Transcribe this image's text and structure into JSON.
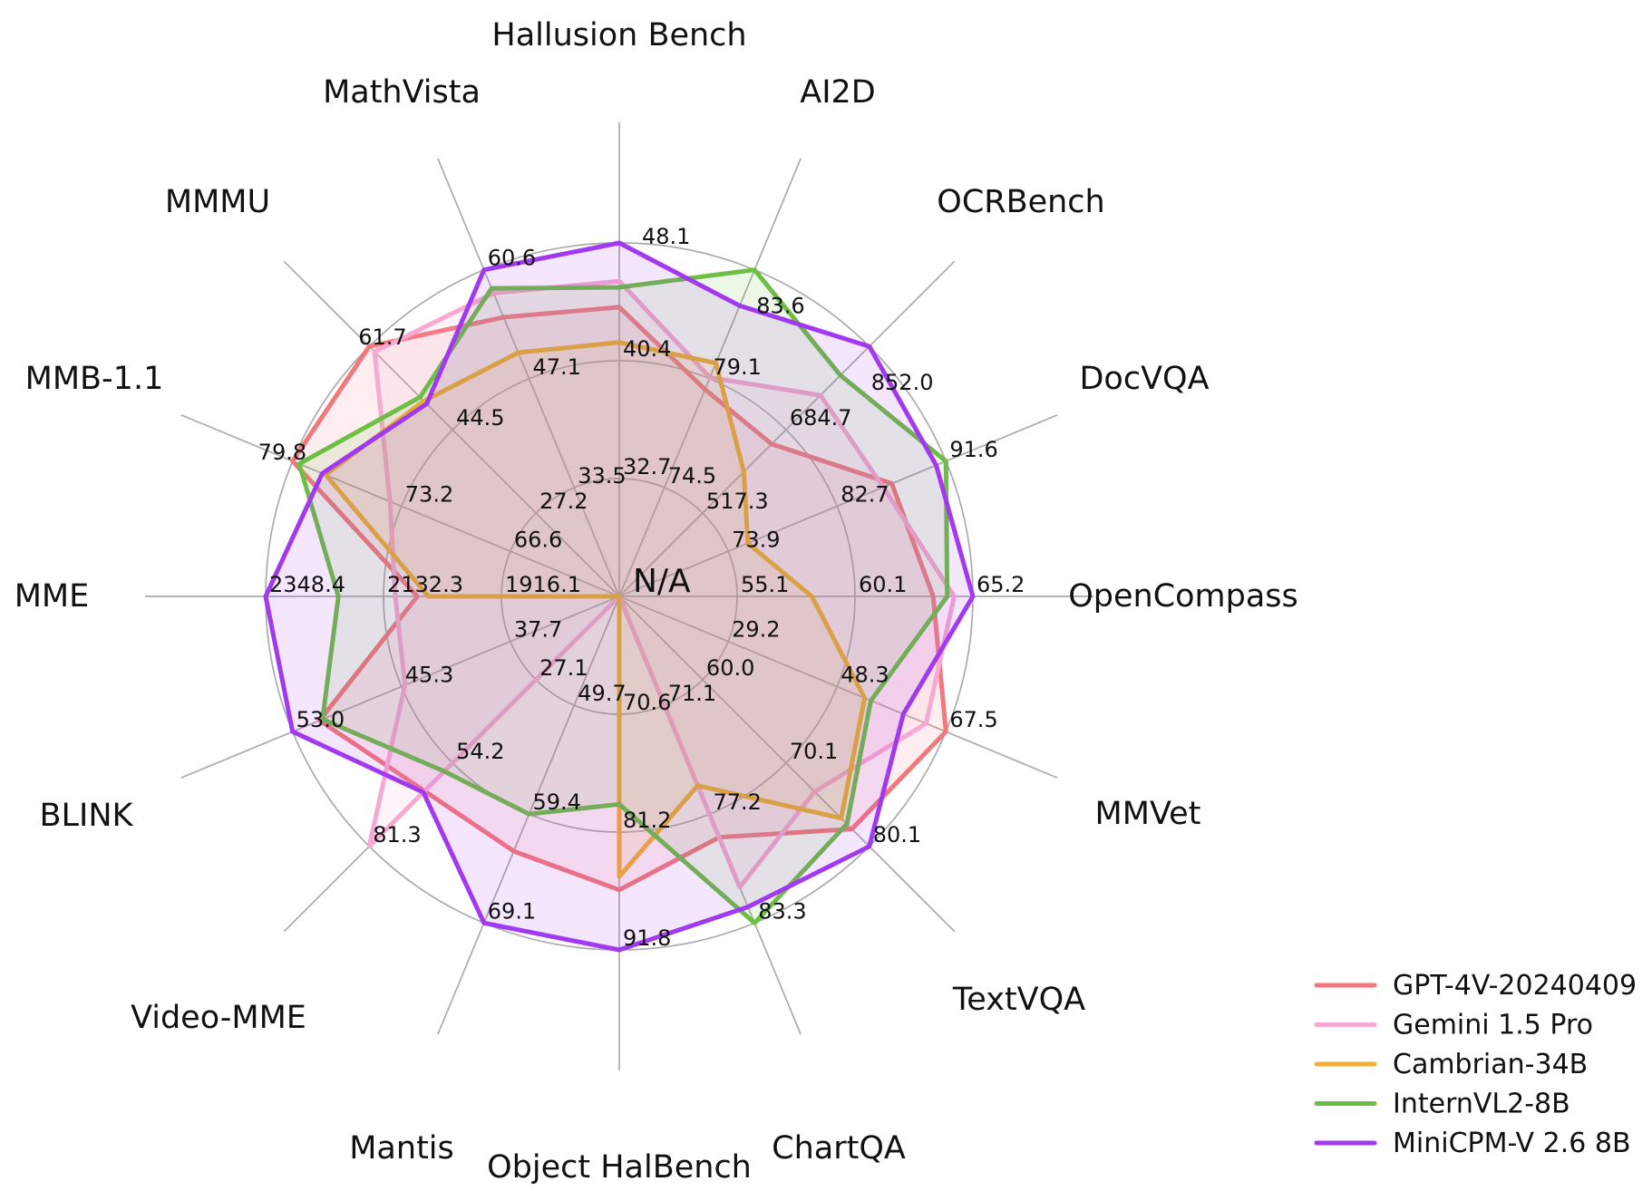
{
  "chart_data": {
    "type": "radar",
    "title": "",
    "center_label": "N/A",
    "grid": "on",
    "legend_position": "bottom-right",
    "axes": [
      {
        "label": "Hallusion Bench",
        "ticks": [
          32.7,
          40.4,
          48.1
        ]
      },
      {
        "label": "AI2D",
        "ticks": [
          74.5,
          79.1,
          83.6
        ]
      },
      {
        "label": "OCRBench",
        "ticks": [
          517.3,
          684.7,
          852.0
        ]
      },
      {
        "label": "DocVQA",
        "ticks": [
          73.9,
          82.7,
          91.6
        ]
      },
      {
        "label": "OpenCompass",
        "ticks": [
          55.1,
          60.1,
          65.2
        ]
      },
      {
        "label": "MMVet",
        "ticks": [
          29.2,
          48.3,
          67.5
        ]
      },
      {
        "label": "TextVQA",
        "ticks": [
          60.0,
          70.1,
          80.1
        ]
      },
      {
        "label": "ChartQA",
        "ticks": [
          71.1,
          77.2,
          83.3
        ]
      },
      {
        "label": "Object HalBench",
        "ticks": [
          70.6,
          81.2,
          91.8
        ]
      },
      {
        "label": "Mantis",
        "ticks": [
          49.7,
          59.4,
          69.1
        ]
      },
      {
        "label": "Video-MME",
        "ticks": [
          27.1,
          54.2,
          81.3
        ]
      },
      {
        "label": "BLINK",
        "ticks": [
          37.7,
          45.3,
          53.0
        ]
      },
      {
        "label": "MME",
        "ticks": [
          1916.1,
          2132.3,
          2348.4
        ]
      },
      {
        "label": "MMB-1.1",
        "ticks": [
          66.6,
          73.2,
          79.8
        ]
      },
      {
        "label": "MMMU",
        "ticks": [
          27.2,
          44.5,
          61.7
        ]
      },
      {
        "label": "MathVista",
        "ticks": [
          33.5,
          47.1,
          60.6
        ]
      }
    ],
    "series": [
      {
        "name": "GPT-4V-20240409",
        "color": "#F4777B",
        "values": [
          43.9,
          78.6,
          656.0,
          87.2,
          63.5,
          67.5,
          78.0,
          78.5,
          86.4,
          62.7,
          63.3,
          51.1,
          2070.2,
          79.8,
          61.7,
          54.7
        ]
      },
      {
        "name": "Gemini 1.5 Pro",
        "color": "#F9A8D2",
        "values": [
          45.6,
          79.1,
          754.0,
          86.5,
          64.4,
          64.0,
          73.5,
          81.3,
          null,
          null,
          81.3,
          45.1,
          2110.6,
          73.9,
          60.6,
          57.7
        ]
      },
      {
        "name": "Cambrian-34B",
        "color": "#F2AE30",
        "values": [
          41.6,
          79.7,
          600.0,
          75.5,
          58.3,
          53.2,
          76.7,
          75.6,
          85.2,
          null,
          null,
          null,
          2049.9,
          77.8,
          50.4,
          50.3
        ]
      },
      {
        "name": "InternVL2-8B",
        "color": "#6DBE45",
        "values": [
          45.2,
          83.6,
          794.0,
          91.6,
          64.1,
          54.3,
          77.4,
          83.3,
          78.7,
          59.4,
          56.9,
          50.9,
          2215.1,
          79.4,
          51.2,
          58.3
        ]
      },
      {
        "name": "MiniCPM-V 2.6 8B",
        "color": "#A139F0",
        "values": [
          48.1,
          82.1,
          852.0,
          90.8,
          65.2,
          60.0,
          80.1,
          82.4,
          91.8,
          69.1,
          63.7,
          53.0,
          2348.4,
          78.0,
          49.8,
          60.6
        ]
      }
    ]
  }
}
